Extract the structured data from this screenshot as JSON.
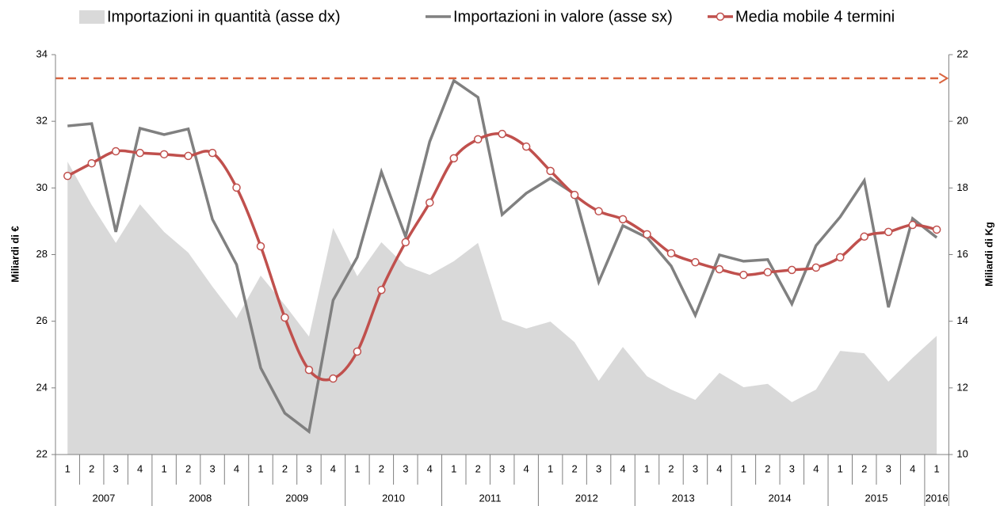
{
  "chart_data": {
    "type": "combo",
    "y_label": "Miliardi di €",
    "y2_label": "Miliardi di Kg",
    "categories": [
      "1",
      "2",
      "3",
      "4",
      "1",
      "2",
      "3",
      "4",
      "1",
      "2",
      "3",
      "4",
      "1",
      "2",
      "3",
      "4",
      "1",
      "2",
      "3",
      "4",
      "1",
      "2",
      "3",
      "4",
      "1",
      "2",
      "3",
      "4",
      "1",
      "2",
      "3",
      "4",
      "1",
      "2",
      "3",
      "4",
      "1"
    ],
    "years": [
      "2007",
      "2008",
      "2009",
      "2010",
      "2011",
      "2012",
      "2013",
      "2014",
      "2015",
      "2016"
    ],
    "series": [
      {
        "name": "Importazioni in quantità (asse dx)",
        "kind": "area",
        "axis": "y2",
        "color": "#d9d9d9",
        "values": [
          18.79,
          17.49,
          16.35,
          17.51,
          16.68,
          16.06,
          15.04,
          14.09,
          15.37,
          14.49,
          13.54,
          16.8,
          15.35,
          16.37,
          15.66,
          15.39,
          15.8,
          16.35,
          14.04,
          13.78,
          13.99,
          13.37,
          12.21,
          13.23,
          12.35,
          11.95,
          11.64,
          12.45,
          12.02,
          12.12,
          11.57,
          11.95,
          13.11,
          13.04,
          12.19,
          12.9,
          13.56
        ]
      },
      {
        "name": "Importazioni in valore (asse sx)",
        "kind": "line",
        "color": "#808080",
        "values": [
          31.86,
          31.93,
          28.68,
          31.79,
          31.6,
          31.77,
          29.06,
          27.7,
          24.6,
          23.24,
          22.69,
          26.63,
          27.92,
          30.48,
          28.54,
          31.39,
          33.22,
          32.72,
          29.2,
          29.84,
          30.29,
          29.82,
          27.18,
          28.87,
          28.51,
          27.66,
          26.18,
          27.99,
          27.8,
          27.85,
          26.52,
          28.27,
          29.13,
          30.22,
          26.42,
          29.08,
          28.51
        ]
      },
      {
        "name": "Media mobile 4 termini",
        "kind": "line-marker",
        "color": "#c0504d",
        "values": [
          30.36,
          30.74,
          31.1,
          31.05,
          31.01,
          30.96,
          31.05,
          30.01,
          28.25,
          26.11,
          24.54,
          24.28,
          25.09,
          26.94,
          28.37,
          29.56,
          30.89,
          31.46,
          31.62,
          31.24,
          30.51,
          29.79,
          29.3,
          29.06,
          28.61,
          28.04,
          27.77,
          27.56,
          27.39,
          27.47,
          27.54,
          27.61,
          27.92,
          28.54,
          28.68,
          28.89,
          28.75
        ]
      }
    ],
    "reference_line": {
      "value": 33.29,
      "color": "#d9643f"
    },
    "ylim": [
      22,
      34
    ],
    "yticks": [
      22,
      24,
      26,
      28,
      30,
      32,
      34
    ],
    "y2lim": [
      10,
      22
    ],
    "y2ticks": [
      10,
      12,
      14,
      16,
      18,
      20,
      22
    ]
  }
}
